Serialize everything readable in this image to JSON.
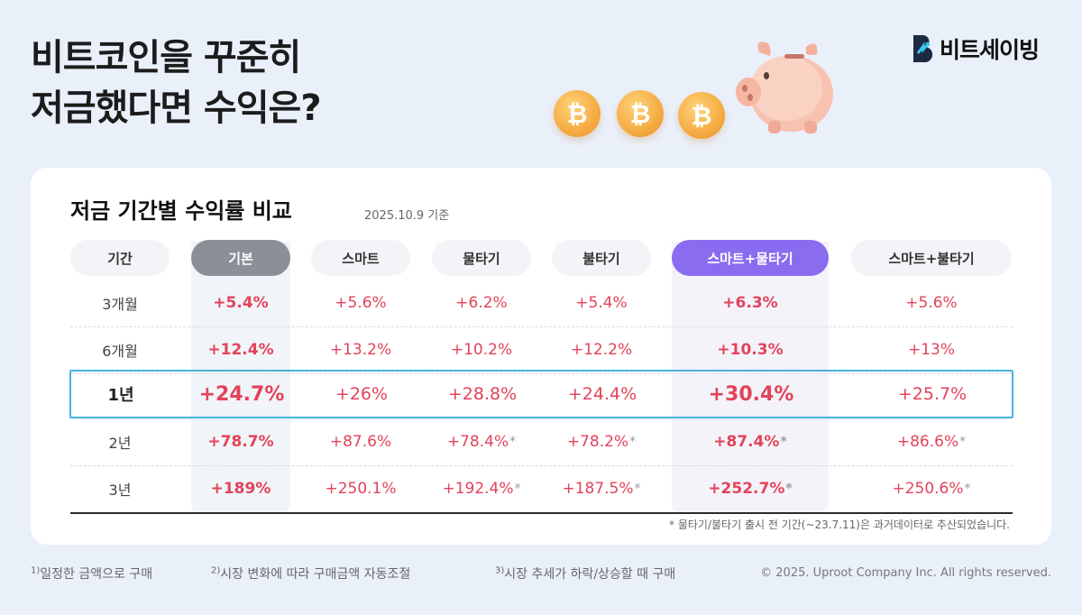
{
  "headline": {
    "line1": "비트코인을 꾸준히",
    "line2": "저금했다면 수익은?"
  },
  "brand": {
    "name": "비트세이빙"
  },
  "coins": [
    "bitcoin-coin-icon",
    "bitcoin-coin-icon",
    "bitcoin-coin-icon"
  ],
  "card": {
    "title": "저금 기간별 수익률 비교",
    "date": "2025.10.9 기준",
    "columns": [
      "기간",
      "기본",
      "스마트",
      "물타기",
      "불타기",
      "스마트+물타기",
      "스마트+불타기"
    ],
    "rows": [
      {
        "period": "3개월",
        "values": [
          "+5.4%",
          "+5.6%",
          "+6.2%",
          "+5.4%",
          "+6.3%",
          "+5.6%"
        ],
        "asterisk": [
          false,
          false,
          false,
          false,
          false,
          false
        ]
      },
      {
        "period": "6개월",
        "values": [
          "+12.4%",
          "+13.2%",
          "+10.2%",
          "+12.2%",
          "+10.3%",
          "+13%"
        ],
        "asterisk": [
          false,
          false,
          false,
          false,
          false,
          false
        ]
      },
      {
        "period": "1년",
        "values": [
          "+24.7%",
          "+26%",
          "+28.8%",
          "+24.4%",
          "+30.4%",
          "+25.7%"
        ],
        "asterisk": [
          false,
          false,
          false,
          false,
          false,
          false
        ]
      },
      {
        "period": "2년",
        "values": [
          "+78.7%",
          "+87.6%",
          "+78.4%",
          "+78.2%",
          "+87.4%",
          "+86.6%"
        ],
        "asterisk": [
          false,
          false,
          true,
          true,
          true,
          true
        ]
      },
      {
        "period": "3년",
        "values": [
          "+189%",
          "+250.1%",
          "+192.4%",
          "+187.5%",
          "+252.7%",
          "+250.6%"
        ],
        "asterisk": [
          false,
          false,
          true,
          true,
          true,
          true
        ]
      }
    ],
    "asterisk_mark": "*",
    "footnote": "* 물타기/불타기 출시 전 기간(~23.7.11)은 과거데이터로 추산되었습니다."
  },
  "footer": {
    "notes": [
      {
        "num": "1)",
        "text": "일정한 금액으로 구매"
      },
      {
        "num": "2)",
        "text": "시장 변화에 따라 구매금액 자동조절"
      },
      {
        "num": "3)",
        "text": "시장 추세가 하락/상승할 때 구매"
      }
    ],
    "copyright": "© 2025. Uproot Company Inc. All rights reserved."
  },
  "colors": {
    "accent_purple": "#8a6cf0",
    "accent_red": "#e2435a",
    "highlight_blue": "#47b3e0",
    "coin_orange": "#f3a53a"
  }
}
